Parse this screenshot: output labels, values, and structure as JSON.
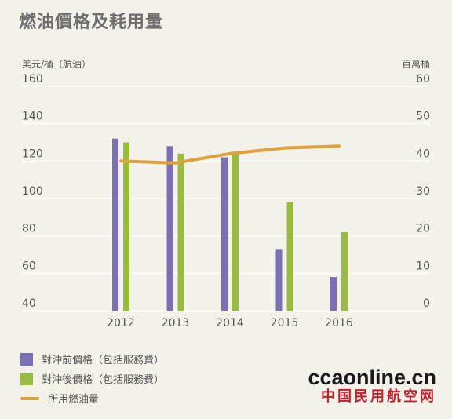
{
  "title": "燃油價格及耗用量",
  "chart_data": {
    "type": "bar",
    "categories": [
      "2012",
      "2013",
      "2014",
      "2015",
      "2016"
    ],
    "ylabel_left": "美元/桶（航油）",
    "ylabel_right": "百萬桶",
    "ylim_left": [
      40,
      160
    ],
    "ylim_right": [
      0,
      60
    ],
    "yticks_left": [
      "40",
      "60",
      "80",
      "100",
      "120",
      "140",
      "160"
    ],
    "yticks_right": [
      "0",
      "10",
      "20",
      "30",
      "40",
      "50",
      "60"
    ],
    "grid": true,
    "series": [
      {
        "name": "對沖前價格（包括服務費）",
        "type": "bar",
        "axis": "left",
        "color": "#7b6fb5",
        "values": [
          132,
          128,
          122,
          73,
          58
        ]
      },
      {
        "name": "對沖後價格（包括服務費）",
        "type": "bar",
        "axis": "left",
        "color": "#99bb3f",
        "values": [
          130,
          124,
          124,
          98,
          82
        ]
      },
      {
        "name": "所用燃油量",
        "type": "line",
        "axis": "right",
        "color": "#e0a03c",
        "values": [
          40,
          39.5,
          42,
          43.5,
          44
        ]
      }
    ],
    "legend_position": "bottom-left"
  },
  "watermark": {
    "top": "ccaonline.cn",
    "bottom": "中国民用航空网"
  }
}
